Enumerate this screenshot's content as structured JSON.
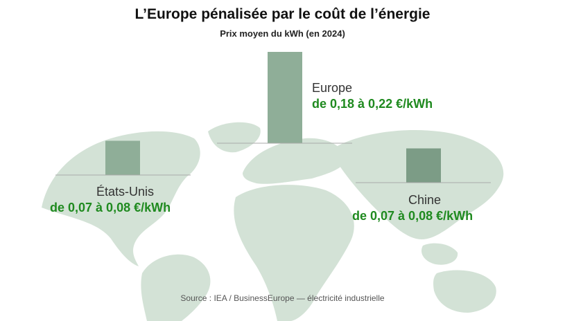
{
  "header": {
    "title": "L’Europe pénalisée par le coût de l’énergie",
    "subtitle": "Prix moyen du kWh (en 2024)"
  },
  "footer": {
    "source": "Source : IEA / BusinessEurope — électricité industrielle"
  },
  "colors": {
    "map": "#d3e2d6",
    "bar": "#8fae98",
    "bar_dark": "#7c9c86",
    "baseline": "#a9a9a9",
    "range_text": "#1f8a1f"
  },
  "chart_data": {
    "type": "bar",
    "title": "L’Europe pénalisée par le coût de l’énergie",
    "subtitle": "Prix moyen du kWh (en 2024)",
    "unit": "€/kWh",
    "categories": [
      "États-Unis",
      "Europe",
      "Chine"
    ],
    "series": [
      {
        "values": [
          0.075,
          0.2,
          0.075
        ]
      }
    ],
    "ranges": [
      {
        "name": "États-Unis",
        "min": 0.07,
        "max": 0.08,
        "label": "de 0,07 à 0,08 €/kWh"
      },
      {
        "name": "Europe",
        "min": 0.18,
        "max": 0.22,
        "label": "de 0,18 à 0,22 €/kWh"
      },
      {
        "name": "Chine",
        "min": 0.07,
        "max": 0.08,
        "label": "de 0,07 à 0,08 €/kWh"
      }
    ],
    "ylim": [
      0,
      0.22
    ],
    "grid": false,
    "legend": "none"
  }
}
